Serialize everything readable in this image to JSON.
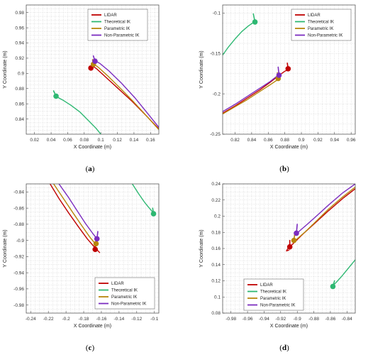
{
  "chart_data": [
    {
      "id": "a",
      "panel_label": "a",
      "type": "line",
      "xlabel": "X Coordinate (m)",
      "ylabel": "Y Coordinate (m)",
      "xlim": [
        0.01,
        0.17
      ],
      "ylim": [
        0.82,
        0.99
      ],
      "xticks": [
        0.02,
        0.04,
        0.06,
        0.08,
        0.1,
        0.12,
        0.14,
        0.16
      ],
      "xtick_labels": [
        "0.02",
        "0.04",
        "0.06",
        "0.08",
        "0.1",
        "0.12",
        "0.14",
        "0.16"
      ],
      "yticks": [
        0.84,
        0.86,
        0.88,
        0.9,
        0.92,
        0.94,
        0.96,
        0.98
      ],
      "ytick_labels": [
        "0.84",
        "0.86",
        "0.88",
        "0.9",
        "0.92",
        "0.94",
        "0.96",
        "0.98"
      ],
      "legend_position": "top-right",
      "series": [
        {
          "name": "LIDAR",
          "color": "#c00000",
          "x": [
            0.17,
            0.155,
            0.138,
            0.12,
            0.105,
            0.095,
            0.091
          ],
          "y": [
            0.827,
            0.844,
            0.863,
            0.881,
            0.896,
            0.906,
            0.909
          ],
          "marker": [
            0.088,
            0.907
          ],
          "tick": [
            [
              0.089,
              0.909
            ],
            [
              0.092,
              0.915
            ]
          ]
        },
        {
          "name": "Theoretical IK",
          "color": "#2eb872",
          "x": [
            0.1,
            0.094,
            0.085,
            0.075,
            0.064,
            0.054,
            0.047
          ],
          "y": [
            0.82,
            0.828,
            0.838,
            0.849,
            0.858,
            0.865,
            0.869
          ],
          "marker": [
            0.046,
            0.87
          ],
          "tick": [
            [
              0.046,
              0.87
            ],
            [
              0.043,
              0.877
            ]
          ]
        },
        {
          "name": "Parametric IK",
          "color": "#b8860b",
          "x": [
            0.17,
            0.156,
            0.14,
            0.123,
            0.108,
            0.097,
            0.092
          ],
          "y": [
            0.826,
            0.843,
            0.862,
            0.881,
            0.897,
            0.908,
            0.912
          ],
          "marker": [
            0.091,
            0.912
          ],
          "tick": [
            [
              0.091,
              0.912
            ],
            [
              0.09,
              0.918
            ]
          ]
        },
        {
          "name": "Non-Parametric IK",
          "color": "#7b2cbf",
          "x": [
            0.17,
            0.156,
            0.141,
            0.125,
            0.11,
            0.099,
            0.094
          ],
          "y": [
            0.829,
            0.848,
            0.868,
            0.887,
            0.903,
            0.913,
            0.916
          ],
          "marker": [
            0.093,
            0.916
          ],
          "tick": [
            [
              0.093,
              0.916
            ],
            [
              0.091,
              0.923
            ]
          ]
        }
      ]
    },
    {
      "id": "b",
      "panel_label": "b",
      "type": "line",
      "xlabel": "X Coordinate (m)",
      "ylabel": "Y Coordinate (m)",
      "xlim": [
        0.805,
        0.965
      ],
      "ylim": [
        -0.25,
        -0.09
      ],
      "xticks": [
        0.82,
        0.84,
        0.86,
        0.88,
        0.9,
        0.92,
        0.94,
        0.96
      ],
      "xtick_labels": [
        "0.82",
        "0.84",
        "0.86",
        "0.88",
        "0.9",
        "0.92",
        "0.94",
        "0.96"
      ],
      "yticks": [
        -0.25,
        -0.2,
        -0.15,
        -0.1
      ],
      "ytick_labels": [
        "-0.25",
        "-0.2",
        "-0.15",
        "-0.1"
      ],
      "legend_position": "top-right",
      "series": [
        {
          "name": "LIDAR",
          "color": "#c00000",
          "x": [
            0.805,
            0.82,
            0.835,
            0.85,
            0.862,
            0.872,
            0.88,
            0.885
          ],
          "y": [
            -0.224,
            -0.215,
            -0.205,
            -0.195,
            -0.186,
            -0.178,
            -0.172,
            -0.17
          ],
          "marker": [
            0.884,
            -0.169
          ],
          "tick": [
            [
              0.884,
              -0.169
            ],
            [
              0.883,
              -0.162
            ]
          ]
        },
        {
          "name": "Theoretical IK",
          "color": "#2eb872",
          "x": [
            0.805,
            0.812,
            0.82,
            0.828,
            0.836,
            0.843
          ],
          "y": [
            -0.152,
            -0.142,
            -0.132,
            -0.123,
            -0.116,
            -0.111
          ],
          "marker": [
            0.844,
            -0.111
          ],
          "tick": [
            [
              0.844,
              -0.111
            ],
            [
              0.842,
              -0.101
            ]
          ]
        },
        {
          "name": "Parametric IK",
          "color": "#b8860b",
          "x": [
            0.805,
            0.82,
            0.835,
            0.85,
            0.862,
            0.872
          ],
          "y": [
            -0.225,
            -0.216,
            -0.207,
            -0.197,
            -0.189,
            -0.182
          ],
          "marker": [
            0.872,
            -0.181
          ],
          "tick": [
            [
              0.872,
              -0.181
            ],
            [
              0.871,
              -0.174
            ]
          ]
        },
        {
          "name": "Non-Parametric IK",
          "color": "#7b2cbf",
          "x": [
            0.805,
            0.82,
            0.835,
            0.85,
            0.862,
            0.872
          ],
          "y": [
            -0.222,
            -0.213,
            -0.203,
            -0.193,
            -0.185,
            -0.177
          ],
          "marker": [
            0.873,
            -0.177
          ],
          "tick": [
            [
              0.873,
              -0.177
            ],
            [
              0.872,
              -0.167
            ]
          ]
        }
      ]
    },
    {
      "id": "c",
      "panel_label": "c",
      "type": "line",
      "xlabel": "X Coordinate (m)",
      "ylabel": "Y Coordinate (m)",
      "xlim": [
        -0.245,
        -0.095
      ],
      "ylim": [
        -0.99,
        -0.83
      ],
      "xticks": [
        -0.24,
        -0.22,
        -0.2,
        -0.18,
        -0.16,
        -0.14,
        -0.12,
        -0.1
      ],
      "xtick_labels": [
        "-0.24",
        "-0.22",
        "-0.2",
        "-0.18",
        "-0.16",
        "-0.14",
        "-0.12",
        "-0.1"
      ],
      "yticks": [
        -0.98,
        -0.96,
        -0.94,
        -0.92,
        -0.9,
        -0.88,
        -0.86,
        -0.84
      ],
      "ytick_labels": [
        "-0.98",
        "-0.96",
        "-0.94",
        "-0.92",
        "-0.9",
        "-0.88",
        "-0.86",
        "-0.84"
      ],
      "legend_position": "bottom-right",
      "series": [
        {
          "name": "LIDAR",
          "color": "#c00000",
          "x": [
            -0.218,
            -0.208,
            -0.197,
            -0.186,
            -0.176,
            -0.168,
            -0.162
          ],
          "y": [
            -0.83,
            -0.848,
            -0.866,
            -0.883,
            -0.898,
            -0.908,
            -0.915
          ],
          "marker": [
            -0.167,
            -0.911
          ],
          "tick": [
            [
              -0.167,
              -0.911
            ],
            [
              -0.167,
              -0.904
            ]
          ]
        },
        {
          "name": "Theoretical IK",
          "color": "#2eb872",
          "x": [
            -0.125,
            -0.118,
            -0.111,
            -0.105,
            -0.101
          ],
          "y": [
            -0.83,
            -0.842,
            -0.853,
            -0.861,
            -0.866
          ],
          "marker": [
            -0.101,
            -0.867
          ],
          "tick": [
            [
              -0.101,
              -0.867
            ],
            [
              -0.102,
              -0.86
            ]
          ]
        },
        {
          "name": "Parametric IK",
          "color": "#b8860b",
          "x": [
            -0.214,
            -0.203,
            -0.192,
            -0.182,
            -0.173,
            -0.167
          ],
          "y": [
            -0.83,
            -0.848,
            -0.866,
            -0.882,
            -0.896,
            -0.904
          ],
          "marker": [
            -0.166,
            -0.904
          ],
          "tick": [
            [
              -0.166,
              -0.904
            ],
            [
              -0.165,
              -0.896
            ]
          ]
        },
        {
          "name": "Non-Parametric IK",
          "color": "#7b2cbf",
          "x": [
            -0.208,
            -0.197,
            -0.187,
            -0.178,
            -0.17,
            -0.165
          ],
          "y": [
            -0.83,
            -0.847,
            -0.864,
            -0.879,
            -0.891,
            -0.898
          ],
          "marker": [
            -0.165,
            -0.898
          ],
          "tick": [
            [
              -0.165,
              -0.898
            ],
            [
              -0.164,
              -0.889
            ]
          ]
        }
      ]
    },
    {
      "id": "d",
      "panel_label": "d",
      "type": "line",
      "xlabel": "X Coordinate (m)",
      "ylabel": "Y Coordinate (m)",
      "xlim": [
        -0.99,
        -0.83
      ],
      "ylim": [
        0.08,
        0.24
      ],
      "xticks": [
        -0.98,
        -0.96,
        -0.94,
        -0.92,
        -0.9,
        -0.88,
        -0.86,
        -0.84
      ],
      "xtick_labels": [
        "-0.98",
        "-0.96",
        "-0.94",
        "-0.92",
        "-0.9",
        "-0.88",
        "-0.86",
        "-0.84"
      ],
      "yticks": [
        0.08,
        0.1,
        0.12,
        0.14,
        0.16,
        0.18,
        0.2,
        0.22,
        0.24
      ],
      "ytick_labels": [
        "0.08",
        "0.1",
        "0.12",
        "0.14",
        "0.16",
        "0.18",
        "0.2",
        "0.22",
        "0.24"
      ],
      "legend_position": "bottom-left",
      "series": [
        {
          "name": "LIDAR",
          "color": "#c00000",
          "x": [
            -0.83,
            -0.845,
            -0.862,
            -0.878,
            -0.893,
            -0.903,
            -0.908,
            -0.912,
            -0.913,
            -0.91
          ],
          "y": [
            0.234,
            0.222,
            0.207,
            0.192,
            0.178,
            0.168,
            0.163,
            0.159,
            0.157,
            0.158
          ],
          "marker": [
            -0.909,
            0.162
          ],
          "tick": [
            [
              -0.909,
              0.162
            ],
            [
              -0.909,
              0.17
            ]
          ]
        },
        {
          "name": "Theoretical IK",
          "color": "#2eb872",
          "x": [
            -0.83,
            -0.838,
            -0.846,
            -0.853,
            -0.857
          ],
          "y": [
            0.146,
            0.136,
            0.126,
            0.118,
            0.114
          ],
          "marker": [
            -0.857,
            0.113
          ],
          "tick": [
            [
              -0.857,
              0.113
            ],
            [
              -0.855,
              0.12
            ]
          ]
        },
        {
          "name": "Parametric IK",
          "color": "#b8860b",
          "x": [
            -0.83,
            -0.845,
            -0.862,
            -0.877,
            -0.89,
            -0.9,
            -0.904
          ],
          "y": [
            0.236,
            0.224,
            0.209,
            0.194,
            0.181,
            0.172,
            0.169
          ],
          "marker": [
            -0.904,
            0.17
          ],
          "tick": [
            [
              -0.904,
              0.17
            ],
            [
              -0.903,
              0.178
            ]
          ]
        },
        {
          "name": "Non-Parametric IK",
          "color": "#7b2cbf",
          "x": [
            -0.83,
            -0.845,
            -0.862,
            -0.877,
            -0.889,
            -0.897,
            -0.9
          ],
          "y": [
            0.24,
            0.229,
            0.214,
            0.2,
            0.189,
            0.182,
            0.179
          ],
          "marker": [
            -0.901,
            0.179
          ],
          "tick": [
            [
              -0.901,
              0.179
            ],
            [
              -0.9,
              0.19
            ]
          ]
        }
      ]
    }
  ]
}
